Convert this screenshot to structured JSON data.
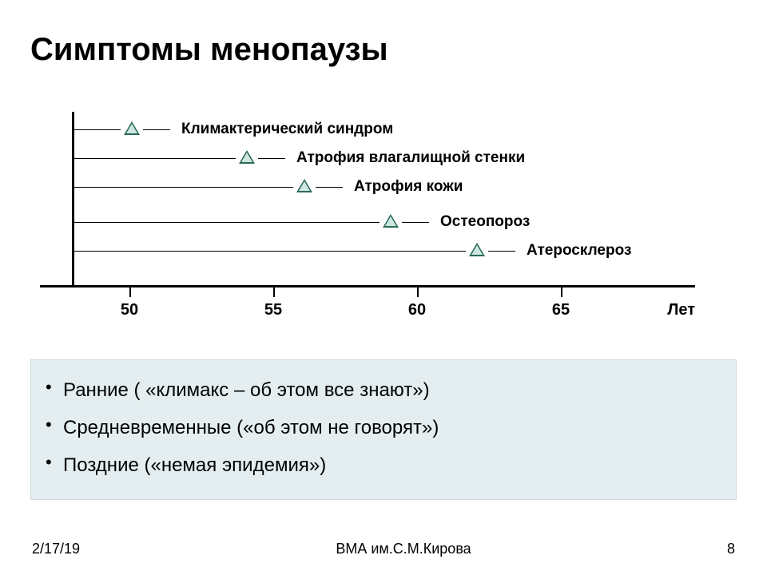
{
  "title": "Симптомы менопаузы",
  "chart": {
    "xlim": [
      48,
      68
    ],
    "ticks": [
      50,
      55,
      60,
      65
    ],
    "axis_label": "Лет",
    "axis_label_fontsize": 20,
    "tick_fontsize": 20,
    "marker_fill": "#cfe7e1",
    "marker_stroke": "#2a6a5a",
    "symptoms": [
      {
        "label": "Климактерический синдром",
        "age": 50,
        "y": 8
      },
      {
        "label": "Атрофия влагалищной стенки",
        "age": 54,
        "y": 44
      },
      {
        "label": "Атрофия кожи",
        "age": 56,
        "y": 80
      },
      {
        "label": "Остеопороз",
        "age": 59,
        "y": 124
      },
      {
        "label": "Атеросклероз",
        "age": 62,
        "y": 160
      }
    ]
  },
  "bullets": [
    "Ранние ( «климакс – об этом все знают»)",
    "Средневременные («об этом не говорят»)",
    "Поздние («немая эпидемия»)"
  ],
  "footer": {
    "date": "2/17/19",
    "center": "ВМА им.С.М.Кирова",
    "page": "8"
  },
  "colors": {
    "background": "#ffffff",
    "bullets_bg": "#e4eef0",
    "text": "#000000"
  }
}
